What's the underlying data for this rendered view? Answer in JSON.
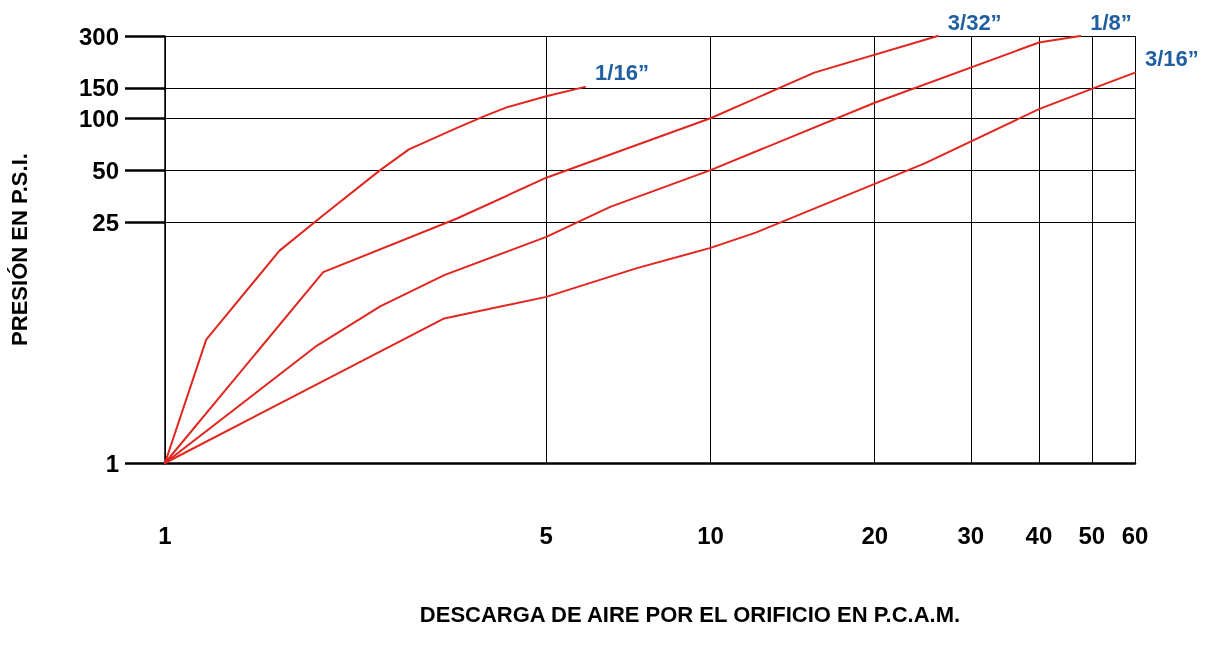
{
  "chart_data": {
    "type": "line",
    "xlabel": "DESCARGA DE AIRE POR EL ORIFICIO EN P.C.A.M.",
    "ylabel": "PRESIÓN EN P.S.I.",
    "xlim": [
      1,
      60
    ],
    "xticks": [
      1,
      5,
      10,
      20,
      30,
      40,
      50,
      60
    ],
    "ylim": [
      1,
      300
    ],
    "yticks": [
      1,
      25,
      50,
      100,
      150,
      300
    ],
    "grid": true,
    "log": "xy",
    "marker": "none",
    "line_style": "solid",
    "series": [
      {
        "name": "1/16”",
        "color": "#e0261f",
        "x": [
          1,
          1.19,
          1.62,
          1.95,
          2.48,
          2.8,
          3.43,
          3.88,
          4.24,
          5,
          5.89
        ],
        "values": [
          1,
          5.2,
          17,
          27.4,
          50,
          66,
          88,
          104,
          116,
          134,
          152
        ]
      },
      {
        "name": "3/32”",
        "color": "#e0261f",
        "x": [
          1,
          1.95,
          3.43,
          5,
          10,
          15.5,
          26.1
        ],
        "values": [
          1,
          12.8,
          26.2,
          45.2,
          100,
          184,
          300
        ]
      },
      {
        "name": "1/8”",
        "color": "#e0261f",
        "x": [
          1,
          1.9,
          2.48,
          3.25,
          5,
          6.55,
          10,
          20,
          40,
          47.6
        ],
        "values": [
          1,
          4.8,
          8.1,
          12.3,
          20.5,
          30.6,
          50,
          123,
          275,
          300
        ]
      },
      {
        "name": "3/16”",
        "color": "#e0261f",
        "x": [
          1,
          3.25,
          5,
          7.33,
          10,
          12.1,
          24.7,
          40,
          50,
          60
        ],
        "values": [
          1,
          6.9,
          9.2,
          13.5,
          17.7,
          21.7,
          54.7,
          113,
          148,
          184
        ]
      }
    ]
  }
}
